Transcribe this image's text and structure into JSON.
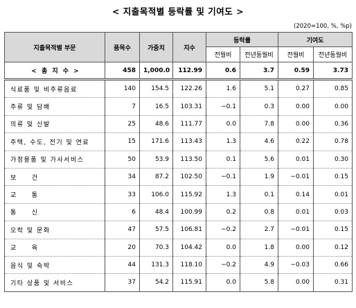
{
  "title": "< 지출목적별 등락률 및 기여도 >",
  "unit": "(2020=100, %, %p)",
  "headers": {
    "category": "지출목적별 부문",
    "items": "품목수",
    "weight": "가중치",
    "index": "지수",
    "change_rate": "등락률",
    "contribution": "기여도",
    "mom": "전월비",
    "yoy": "전년동월비"
  },
  "total": {
    "name": "< 총 지 수 >",
    "items": "458",
    "weight": "1,000.0",
    "index": "112.99",
    "rate_mom": "0.6",
    "rate_yoy": "3.7",
    "contrib_mom": "0.59",
    "contrib_yoy": "3.73"
  },
  "rows": [
    {
      "name": "식료품 및 비주류음료",
      "items": "140",
      "weight": "154.5",
      "index": "122.26",
      "rate_mom": "1.6",
      "rate_yoy": "5.1",
      "contrib_mom": "0.27",
      "contrib_yoy": "0.85"
    },
    {
      "name": "주류 및 담배",
      "items": "7",
      "weight": "16.5",
      "index": "103.31",
      "rate_mom": "−0.1",
      "rate_yoy": "0.3",
      "contrib_mom": "0.00",
      "contrib_yoy": "0.00"
    },
    {
      "name": "의류 및 신발",
      "items": "25",
      "weight": "48.6",
      "index": "111.77",
      "rate_mom": "0.0",
      "rate_yoy": "7.8",
      "contrib_mom": "0.00",
      "contrib_yoy": "0.36"
    },
    {
      "name": "주택, 수도, 전기 및 연료",
      "items": "15",
      "weight": "171.6",
      "index": "113.43",
      "rate_mom": "1.3",
      "rate_yoy": "4.6",
      "contrib_mom": "0.22",
      "contrib_yoy": "0.78"
    },
    {
      "name": "가정용품 및 가사서비스",
      "items": "50",
      "weight": "53.9",
      "index": "113.50",
      "rate_mom": "0.1",
      "rate_yoy": "5.6",
      "contrib_mom": "0.01",
      "contrib_yoy": "0.30"
    },
    {
      "name": "보　　건",
      "items": "34",
      "weight": "87.2",
      "index": "102.50",
      "rate_mom": "−0.1",
      "rate_yoy": "1.9",
      "contrib_mom": "−0.01",
      "contrib_yoy": "0.15"
    },
    {
      "name": "교　　통",
      "items": "33",
      "weight": "106.0",
      "index": "115.92",
      "rate_mom": "1.3",
      "rate_yoy": "0.1",
      "contrib_mom": "0.14",
      "contrib_yoy": "0.01"
    },
    {
      "name": "통　　신",
      "items": "6",
      "weight": "48.4",
      "index": "100.99",
      "rate_mom": "0.2",
      "rate_yoy": "0.8",
      "contrib_mom": "0.01",
      "contrib_yoy": "0.03"
    },
    {
      "name": "오락 및 문화",
      "items": "47",
      "weight": "57.5",
      "index": "106.81",
      "rate_mom": "−0.2",
      "rate_yoy": "2.7",
      "contrib_mom": "−0.01",
      "contrib_yoy": "0.15"
    },
    {
      "name": "교　　육",
      "items": "20",
      "weight": "70.3",
      "index": "104.42",
      "rate_mom": "0.0",
      "rate_yoy": "1.8",
      "contrib_mom": "0.00",
      "contrib_yoy": "0.12"
    },
    {
      "name": "음식 및 숙박",
      "items": "44",
      "weight": "131.3",
      "index": "118.10",
      "rate_mom": "−0.2",
      "rate_yoy": "4.9",
      "contrib_mom": "−0.03",
      "contrib_yoy": "0.66"
    },
    {
      "name": "기타 상품 및 서비스",
      "items": "37",
      "weight": "54.2",
      "index": "115.91",
      "rate_mom": "0.0",
      "rate_yoy": "5.8",
      "contrib_mom": "0.00",
      "contrib_yoy": "0.31"
    }
  ]
}
